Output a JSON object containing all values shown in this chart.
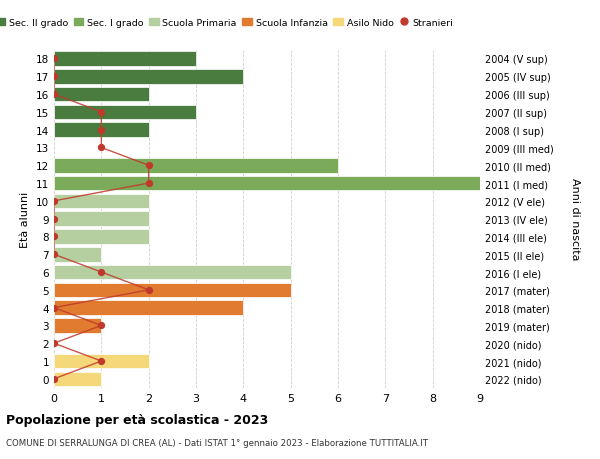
{
  "ages": [
    18,
    17,
    16,
    15,
    14,
    13,
    12,
    11,
    10,
    9,
    8,
    7,
    6,
    5,
    4,
    3,
    2,
    1,
    0
  ],
  "right_labels": [
    "2004 (V sup)",
    "2005 (IV sup)",
    "2006 (III sup)",
    "2007 (II sup)",
    "2008 (I sup)",
    "2009 (III med)",
    "2010 (II med)",
    "2011 (I med)",
    "2012 (V ele)",
    "2013 (IV ele)",
    "2014 (III ele)",
    "2015 (II ele)",
    "2016 (I ele)",
    "2017 (mater)",
    "2018 (mater)",
    "2019 (mater)",
    "2020 (nido)",
    "2021 (nido)",
    "2022 (nido)"
  ],
  "bar_values": [
    3,
    4,
    2,
    3,
    2,
    0,
    6,
    9,
    2,
    2,
    2,
    1,
    5,
    5,
    4,
    1,
    0,
    2,
    1
  ],
  "stranieri": [
    0,
    0,
    0,
    1,
    1,
    1,
    2,
    2,
    0,
    0,
    0,
    0,
    1,
    2,
    0,
    1,
    0,
    1,
    0
  ],
  "bar_colors": [
    "#4a7c3f",
    "#4a7c3f",
    "#4a7c3f",
    "#4a7c3f",
    "#4a7c3f",
    "#7caa5b",
    "#7caa5b",
    "#7caa5b",
    "#b5cfa0",
    "#b5cfa0",
    "#b5cfa0",
    "#b5cfa0",
    "#b5cfa0",
    "#e07b30",
    "#e07b30",
    "#e07b30",
    "#f5d87a",
    "#f5d87a",
    "#f5d87a"
  ],
  "legend_labels": [
    "Sec. II grado",
    "Sec. I grado",
    "Scuola Primaria",
    "Scuola Infanzia",
    "Asilo Nido",
    "Stranieri"
  ],
  "legend_colors": [
    "#4a7c3f",
    "#7caa5b",
    "#b5cfa0",
    "#e07b30",
    "#f5d87a",
    "#c0392b"
  ],
  "stranieri_color": "#c0392b",
  "title": "Popolazione per età scolastica - 2023",
  "subtitle": "COMUNE DI SERRALUNGA DI CREA (AL) - Dati ISTAT 1° gennaio 2023 - Elaborazione TUTTITALIA.IT",
  "ylabel_left": "Età alunni",
  "ylabel_right": "Anni di nascita",
  "xlim": [
    0,
    9
  ],
  "background_color": "#ffffff",
  "grid_color": "#d0d0d0"
}
